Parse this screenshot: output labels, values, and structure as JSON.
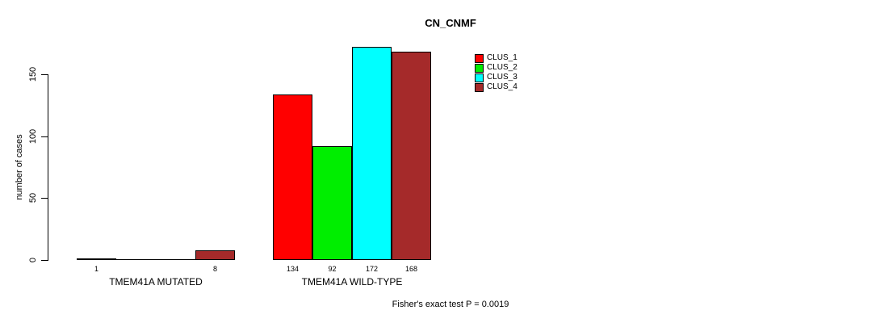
{
  "title": "CN_CNMF",
  "footer": "Fisher's exact test P = 0.0019",
  "chart_data": {
    "type": "bar",
    "title": "CN_CNMF",
    "xlabel": "",
    "ylabel": "number of cases",
    "ylim": [
      0,
      150
    ],
    "yticks": [
      0,
      50,
      100,
      150
    ],
    "grid": false,
    "legend_position": "top-right",
    "categories": [
      "TMEM41A MUTATED",
      "TMEM41A WILD-TYPE"
    ],
    "series": [
      {
        "name": "CLUS_1",
        "color": "#FF0000",
        "values": [
          1,
          134
        ]
      },
      {
        "name": "CLUS_2",
        "color": "#00EE00",
        "values": [
          0,
          92
        ]
      },
      {
        "name": "CLUS_3",
        "color": "#00FFFF",
        "values": [
          0,
          172
        ]
      },
      {
        "name": "CLUS_4",
        "color": "#A52A2A",
        "values": [
          8,
          168
        ]
      }
    ],
    "bar_labels": [
      [
        "1",
        "",
        "",
        "8"
      ],
      [
        "134",
        "92",
        "172",
        "168"
      ]
    ],
    "annotation": "Fisher's exact test P = 0.0019",
    "axis_color": "#000000",
    "bar_border_color": "#000000"
  }
}
